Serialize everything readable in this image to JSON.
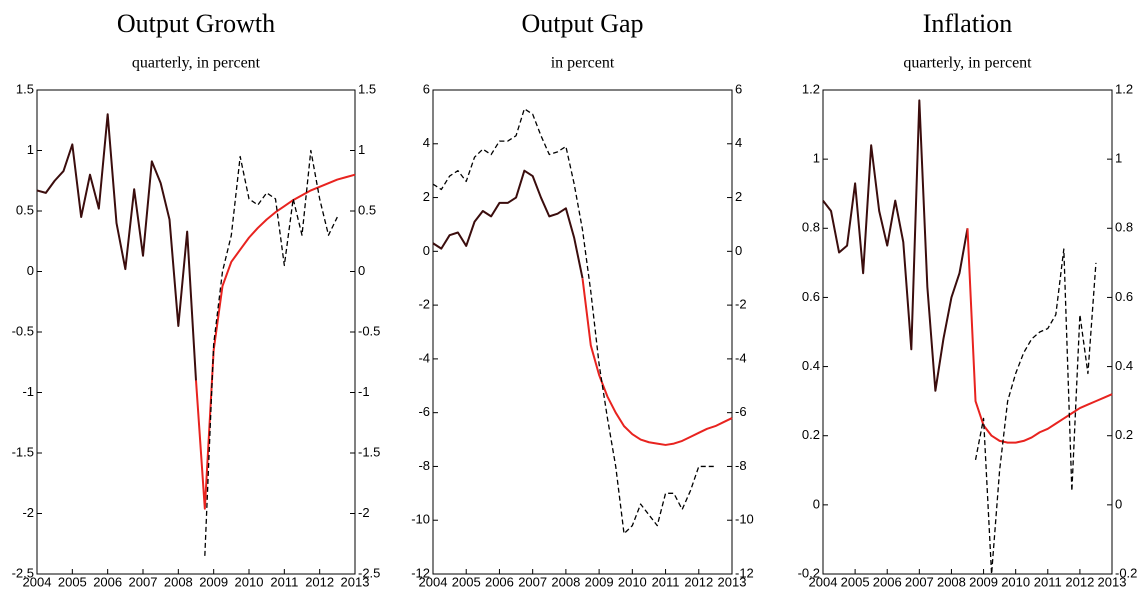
{
  "chart_data": [
    {
      "type": "line",
      "title": "Output Growth",
      "subtitle": "quarterly, in percent",
      "xlim": [
        2004,
        2013
      ],
      "xticks": [
        2004,
        2005,
        2006,
        2007,
        2008,
        2009,
        2010,
        2011,
        2012,
        2013
      ],
      "ylim": [
        -2.5,
        1.5
      ],
      "yticks": [
        -2.5,
        -2,
        -1.5,
        -1,
        -0.5,
        0,
        0.5,
        1,
        1.5
      ],
      "series": [
        {
          "color": "#3b0d0d",
          "linestyle": "solid",
          "x": [
            2004,
            2004.25,
            2004.5,
            2004.75,
            2005,
            2005.25,
            2005.5,
            2005.75,
            2006,
            2006.25,
            2006.5,
            2006.75,
            2007,
            2007.25,
            2007.5,
            2007.75,
            2008,
            2008.25,
            2008.5
          ],
          "values": [
            0.67,
            0.65,
            0.75,
            0.83,
            1.05,
            0.45,
            0.8,
            0.52,
            1.3,
            0.4,
            0.02,
            0.68,
            0.13,
            0.91,
            0.73,
            0.43,
            -0.45,
            0.33,
            -0.9
          ]
        },
        {
          "color": "#e8231f",
          "linestyle": "solid",
          "x": [
            2008.5,
            2008.75,
            2009,
            2009.25,
            2009.5,
            2009.75,
            2010,
            2010.25,
            2010.5,
            2010.75,
            2011,
            2011.25,
            2011.5,
            2011.75,
            2012,
            2012.25,
            2012.5,
            2012.75,
            2013
          ],
          "values": [
            -0.9,
            -1.96,
            -0.65,
            -0.12,
            0.08,
            0.18,
            0.28,
            0.36,
            0.43,
            0.49,
            0.54,
            0.59,
            0.63,
            0.67,
            0.7,
            0.73,
            0.76,
            0.78,
            0.8
          ]
        },
        {
          "color": "#000000",
          "linestyle": "dashed",
          "x": [
            2008.75,
            2009,
            2009.25,
            2009.5,
            2009.75,
            2010,
            2010.25,
            2010.5,
            2010.75,
            2011,
            2011.25,
            2011.5,
            2011.75,
            2012,
            2012.25,
            2012.5
          ],
          "values": [
            -2.35,
            -0.6,
            0,
            0.3,
            0.95,
            0.6,
            0.55,
            0.65,
            0.6,
            0.05,
            0.6,
            0.3,
            1,
            0.6,
            0.3,
            0.45
          ]
        }
      ]
    },
    {
      "type": "line",
      "title": "Output Gap",
      "subtitle": "in percent",
      "xlim": [
        2004,
        2013
      ],
      "xticks": [
        2004,
        2005,
        2006,
        2007,
        2008,
        2009,
        2010,
        2011,
        2012,
        2013
      ],
      "ylim": [
        -12,
        6
      ],
      "yticks": [
        -12,
        -10,
        -8,
        -6,
        -4,
        -2,
        0,
        2,
        4,
        6
      ],
      "series": [
        {
          "color": "#3b0d0d",
          "linestyle": "solid",
          "x": [
            2004,
            2004.25,
            2004.5,
            2004.75,
            2005,
            2005.25,
            2005.5,
            2005.75,
            2006,
            2006.25,
            2006.5,
            2006.75,
            2007,
            2007.25,
            2007.5,
            2007.75,
            2008,
            2008.25,
            2008.5
          ],
          "values": [
            0.3,
            0.1,
            0.6,
            0.7,
            0.2,
            1.1,
            1.5,
            1.3,
            1.8,
            1.8,
            2.0,
            3.0,
            2.8,
            2.0,
            1.3,
            1.4,
            1.6,
            0.5,
            -1.0
          ]
        },
        {
          "color": "#e8231f",
          "linestyle": "solid",
          "x": [
            2008.5,
            2008.75,
            2009,
            2009.25,
            2009.5,
            2009.75,
            2010,
            2010.25,
            2010.5,
            2010.75,
            2011,
            2011.25,
            2011.5,
            2011.75,
            2012,
            2012.25,
            2012.5,
            2012.75,
            2013
          ],
          "values": [
            -1.0,
            -3.5,
            -4.6,
            -5.4,
            -6.0,
            -6.5,
            -6.8,
            -7.0,
            -7.1,
            -7.15,
            -7.2,
            -7.15,
            -7.05,
            -6.9,
            -6.75,
            -6.6,
            -6.5,
            -6.35,
            -6.2
          ]
        },
        {
          "color": "#000000",
          "linestyle": "dashed",
          "x": [
            2004,
            2004.25,
            2004.5,
            2004.75,
            2005,
            2005.25,
            2005.5,
            2005.75,
            2006,
            2006.25,
            2006.5,
            2006.75,
            2007,
            2007.25,
            2007.5,
            2007.75,
            2008,
            2008.25,
            2008.5,
            2008.75,
            2009,
            2009.25,
            2009.5,
            2009.75,
            2010,
            2010.25,
            2010.5,
            2010.75,
            2011,
            2011.25,
            2011.5,
            2011.75,
            2012,
            2012.25,
            2012.5
          ],
          "values": [
            2.5,
            2.3,
            2.8,
            3.0,
            2.6,
            3.5,
            3.8,
            3.6,
            4.1,
            4.1,
            4.3,
            5.3,
            5.1,
            4.3,
            3.6,
            3.7,
            3.9,
            2.5,
            0.8,
            -1.5,
            -4.2,
            -6.2,
            -8.0,
            -10.5,
            -10.2,
            -9.4,
            -9.8,
            -10.2,
            -9.0,
            -9.0,
            -9.6,
            -8.9,
            -8.0,
            -8.0,
            -8.0
          ]
        }
      ]
    },
    {
      "type": "line",
      "title": "Inflation",
      "subtitle": "quarterly, in percent",
      "xlim": [
        2004,
        2013
      ],
      "xticks": [
        2004,
        2005,
        2006,
        2007,
        2008,
        2009,
        2010,
        2011,
        2012,
        2013
      ],
      "ylim": [
        -0.2,
        1.2
      ],
      "yticks": [
        -0.2,
        0,
        0.2,
        0.4,
        0.6,
        0.8,
        1,
        1.2
      ],
      "series": [
        {
          "color": "#3b0d0d",
          "linestyle": "solid",
          "x": [
            2004,
            2004.25,
            2004.5,
            2004.75,
            2005,
            2005.25,
            2005.5,
            2005.75,
            2006,
            2006.25,
            2006.5,
            2006.75,
            2007,
            2007.25,
            2007.5,
            2007.75,
            2008,
            2008.25,
            2008.5
          ],
          "values": [
            0.88,
            0.85,
            0.73,
            0.75,
            0.93,
            0.67,
            1.04,
            0.85,
            0.75,
            0.88,
            0.76,
            0.45,
            1.17,
            0.63,
            0.33,
            0.48,
            0.6,
            0.67,
            0.8
          ]
        },
        {
          "color": "#e8231f",
          "linestyle": "solid",
          "x": [
            2008.5,
            2008.75,
            2009,
            2009.25,
            2009.5,
            2009.75,
            2010,
            2010.25,
            2010.5,
            2010.75,
            2011,
            2011.25,
            2011.5,
            2011.75,
            2012,
            2012.25,
            2012.5,
            2012.75,
            2013
          ],
          "values": [
            0.8,
            0.3,
            0.23,
            0.2,
            0.185,
            0.18,
            0.18,
            0.185,
            0.195,
            0.21,
            0.22,
            0.235,
            0.25,
            0.265,
            0.28,
            0.29,
            0.3,
            0.31,
            0.32
          ]
        },
        {
          "color": "#000000",
          "linestyle": "dashed",
          "x": [
            2008.75,
            2009,
            2009.25,
            2009.5,
            2009.75,
            2010,
            2010.25,
            2010.5,
            2010.75,
            2011,
            2011.25,
            2011.5,
            2011.75,
            2012,
            2012.25,
            2012.5
          ],
          "values": [
            0.13,
            0.25,
            -0.2,
            0.1,
            0.3,
            0.38,
            0.44,
            0.48,
            0.5,
            0.51,
            0.55,
            0.74,
            0.04,
            0.55,
            0.38,
            0.7
          ]
        }
      ]
    }
  ]
}
